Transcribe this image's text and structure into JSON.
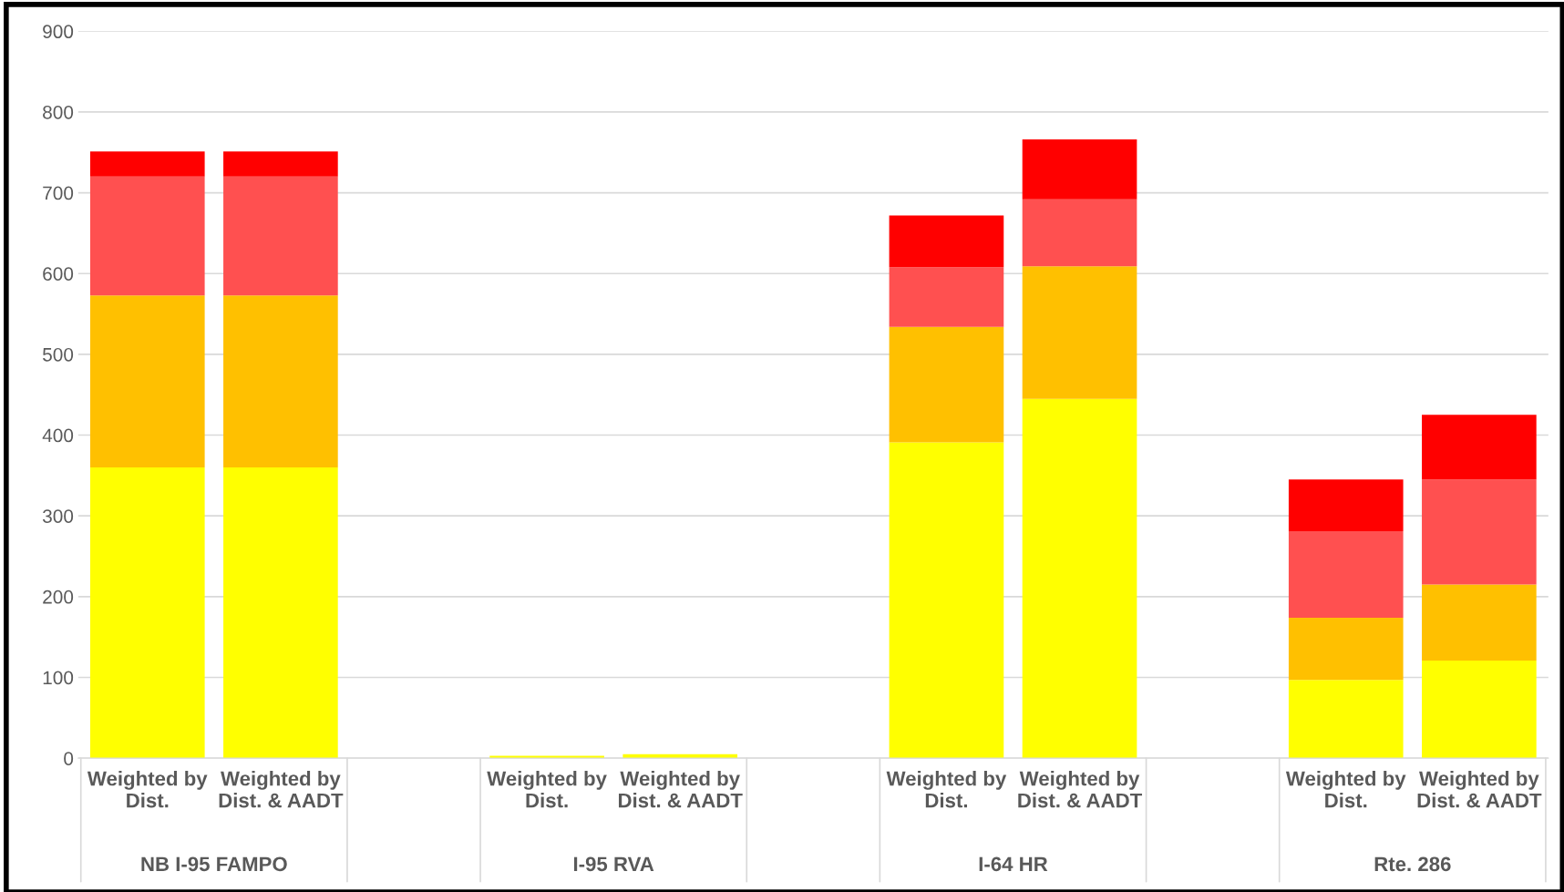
{
  "chart_data": {
    "type": "bar",
    "stacked": true,
    "categories": [
      "Weighted by\nDist.",
      "Weighted by\nDist. & AADT",
      "Weighted by\nDist.",
      "Weighted by\nDist. & AADT",
      "Weighted by\nDist.",
      "Weighted by\nDist. & AADT",
      "Weighted by\nDist.",
      "Weighted by\nDist. & AADT"
    ],
    "series": [
      {
        "color": "#ffff00",
        "values": [
          360,
          360,
          3,
          5,
          391,
          445,
          97,
          121
        ]
      },
      {
        "color": "#ffc000",
        "values": [
          213,
          213,
          null,
          null,
          143,
          164,
          77,
          94
        ]
      },
      {
        "color": "#ff5050",
        "values": [
          147,
          147,
          null,
          null,
          74,
          83,
          107,
          130
        ]
      },
      {
        "color": "#ff0000",
        "values": [
          31,
          31,
          null,
          null,
          64,
          74,
          64,
          80
        ]
      }
    ],
    "annotations": [
      "NB I-95 FAMPO",
      "I-95 RVA",
      "I-64 HR",
      "Rte. 286"
    ],
    "ylim": [
      0,
      900
    ],
    "yticks": [
      0,
      100,
      200,
      300,
      400,
      500,
      600,
      700,
      800,
      900
    ],
    "grid": "y",
    "legend": false
  }
}
